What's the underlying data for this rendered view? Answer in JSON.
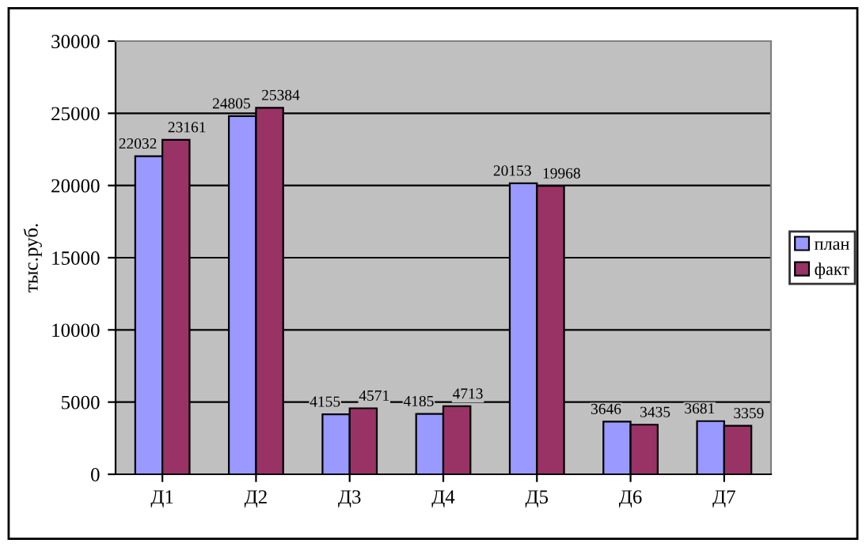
{
  "chart_data": {
    "type": "bar",
    "ylabel": "тыс.руб.",
    "categories": [
      "Д1",
      "Д2",
      "Д3",
      "Д4",
      "Д5",
      "Д6",
      "Д7"
    ],
    "series": [
      {
        "name": "план",
        "color": "#9999ff",
        "values": [
          22032,
          24805,
          4155,
          4185,
          20153,
          3646,
          3681
        ]
      },
      {
        "name": "факт",
        "color": "#993366",
        "values": [
          23161,
          25384,
          4571,
          4713,
          19968,
          3435,
          3359
        ]
      }
    ],
    "ylim": [
      0,
      30000
    ],
    "yticks": [
      0,
      5000,
      10000,
      15000,
      20000,
      25000,
      30000
    ],
    "grid": "y",
    "legend": "right",
    "data_labels": true
  }
}
